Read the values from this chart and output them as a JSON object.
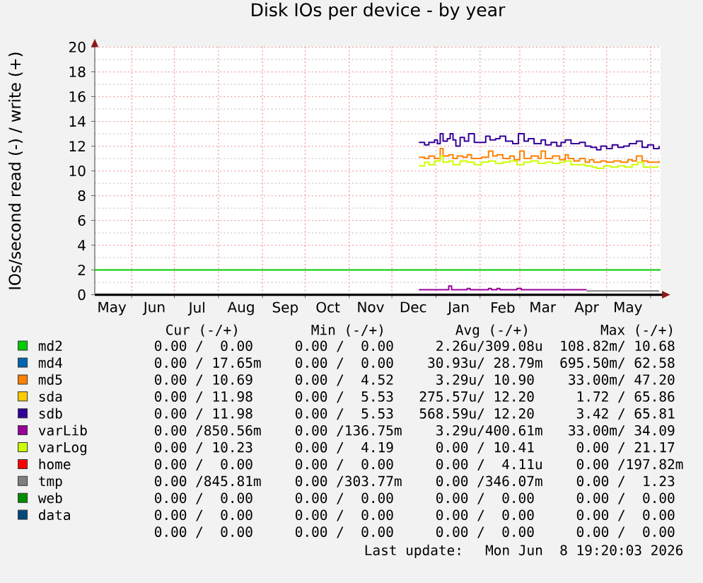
{
  "chart_data": {
    "type": "step",
    "title": "Disk IOs per device - by year",
    "ylabel": "IOs/second read (-) / write (+)",
    "xlim": [
      "2025-05-06",
      "2026-06-08"
    ],
    "xticks": [
      {
        "value": "2025-05-18",
        "label": "May"
      },
      {
        "value": "2025-06-01",
        "label": null
      },
      {
        "value": "2025-06-17",
        "label": "Jun"
      },
      {
        "value": "2025-07-01",
        "label": null
      },
      {
        "value": "2025-07-17",
        "label": "Jul"
      },
      {
        "value": "2025-08-01",
        "label": null
      },
      {
        "value": "2025-08-17",
        "label": "Aug"
      },
      {
        "value": "2025-09-01",
        "label": null
      },
      {
        "value": "2025-09-17",
        "label": "Sep"
      },
      {
        "value": "2025-10-01",
        "label": null
      },
      {
        "value": "2025-10-17",
        "label": "Oct"
      },
      {
        "value": "2025-11-01",
        "label": null
      },
      {
        "value": "2025-11-16",
        "label": "Nov"
      },
      {
        "value": "2025-12-01",
        "label": null
      },
      {
        "value": "2025-12-16",
        "label": "Dec"
      },
      {
        "value": "2026-01-01",
        "label": null
      },
      {
        "value": "2026-01-17",
        "label": "Jan"
      },
      {
        "value": "2026-02-01",
        "label": null
      },
      {
        "value": "2026-02-17",
        "label": "Feb"
      },
      {
        "value": "2026-03-01",
        "label": null
      },
      {
        "value": "2026-03-17",
        "label": "Mar"
      },
      {
        "value": "2026-04-01",
        "label": null
      },
      {
        "value": "2026-04-17",
        "label": "Apr"
      },
      {
        "value": "2026-05-01",
        "label": null
      },
      {
        "value": "2026-05-16",
        "label": "May"
      },
      {
        "value": "2026-06-01",
        "label": null
      }
    ],
    "ylim": [
      0,
      20
    ],
    "yticks": [
      0,
      {
        "value": 1,
        "label": null
      },
      2,
      {
        "value": 3,
        "label": null
      },
      4,
      {
        "value": 5,
        "label": null
      },
      6,
      {
        "value": 7,
        "label": null
      },
      8,
      {
        "value": 9,
        "label": null
      },
      10,
      {
        "value": 11,
        "label": null
      },
      12,
      {
        "value": 13,
        "label": null
      },
      14,
      {
        "value": 15,
        "label": null
      },
      16,
      {
        "value": 17,
        "label": null
      },
      18,
      {
        "value": 19,
        "label": null
      },
      20
    ],
    "grid": true,
    "legend": "bottom",
    "ref_lines": [
      {
        "axis": "y",
        "value": 2,
        "color": "#00cc00"
      }
    ],
    "series": [
      {
        "name": "md2",
        "color": "#00cc00"
      },
      {
        "name": "md4",
        "color": "#0066b3"
      },
      {
        "name": "md5",
        "color": "#ff8000",
        "x": [
          "2025-12-20",
          "2025-12-24",
          "2025-12-27",
          "2025-12-31",
          "2026-01-04",
          "2026-01-06",
          "2026-01-10",
          "2026-01-13",
          "2026-01-16",
          "2026-01-20",
          "2026-01-23",
          "2026-01-26",
          "2026-01-29",
          "2026-02-02",
          "2026-02-07",
          "2026-02-10",
          "2026-02-13",
          "2026-02-17",
          "2026-02-22",
          "2026-02-25",
          "2026-03-01",
          "2026-03-04",
          "2026-03-09",
          "2026-03-14",
          "2026-03-16",
          "2026-03-19",
          "2026-03-24",
          "2026-03-29",
          "2026-04-02",
          "2026-04-04",
          "2026-04-08",
          "2026-04-12",
          "2026-04-16",
          "2026-04-19",
          "2026-04-22",
          "2026-04-27",
          "2026-05-01",
          "2026-05-06",
          "2026-05-11",
          "2026-05-16",
          "2026-05-19",
          "2026-05-22",
          "2026-05-26",
          "2026-05-30",
          "2026-06-03",
          "2026-06-07"
        ],
        "values": [
          11.1,
          11.0,
          11.2,
          11.0,
          11.8,
          11.2,
          11.3,
          11.0,
          11.2,
          11.1,
          11.3,
          11.0,
          11.0,
          11.1,
          11.6,
          11.2,
          11.3,
          11.0,
          11.2,
          10.9,
          11.6,
          11.0,
          11.2,
          11.0,
          11.6,
          11.0,
          11.2,
          10.9,
          11.3,
          11.0,
          10.8,
          11.0,
          10.7,
          10.9,
          10.7,
          10.8,
          10.7,
          10.8,
          10.7,
          10.9,
          10.8,
          11.2,
          10.8,
          10.7,
          10.7,
          10.8
        ]
      },
      {
        "name": "sda",
        "color": "#ffcc00"
      },
      {
        "name": "sdb",
        "color": "#330099",
        "x": [
          "2025-12-20",
          "2025-12-24",
          "2025-12-27",
          "2025-12-31",
          "2026-01-02",
          "2026-01-04",
          "2026-01-06",
          "2026-01-09",
          "2026-01-11",
          "2026-01-13",
          "2026-01-15",
          "2026-01-18",
          "2026-01-21",
          "2026-01-24",
          "2026-01-28",
          "2026-02-01",
          "2026-02-05",
          "2026-02-08",
          "2026-02-12",
          "2026-02-15",
          "2026-02-19",
          "2026-02-24",
          "2026-02-28",
          "2026-03-04",
          "2026-03-07",
          "2026-03-11",
          "2026-03-16",
          "2026-03-19",
          "2026-03-23",
          "2026-03-27",
          "2026-03-30",
          "2026-04-02",
          "2026-04-06",
          "2026-04-12",
          "2026-04-16",
          "2026-04-20",
          "2026-04-24",
          "2026-04-27",
          "2026-05-01",
          "2026-05-05",
          "2026-05-09",
          "2026-05-13",
          "2026-05-17",
          "2026-05-22",
          "2026-05-26",
          "2026-05-30",
          "2026-06-03",
          "2026-06-07"
        ],
        "values": [
          12.3,
          12.1,
          12.3,
          12.5,
          12.2,
          13.0,
          12.4,
          12.6,
          13.0,
          12.5,
          12.0,
          12.7,
          12.4,
          13.0,
          12.3,
          12.3,
          12.8,
          12.5,
          12.6,
          12.8,
          12.4,
          12.2,
          13.0,
          12.4,
          12.6,
          12.2,
          12.5,
          12.1,
          12.3,
          12.0,
          12.3,
          12.5,
          12.2,
          12.3,
          12.0,
          11.9,
          11.7,
          12.0,
          11.8,
          12.1,
          11.9,
          12.0,
          12.2,
          12.4,
          11.9,
          12.1,
          11.8,
          12.0
        ]
      },
      {
        "name": "varLib",
        "color": "#990099",
        "x": [
          "2025-12-20",
          "2026-01-10",
          "2026-01-12",
          "2026-01-23",
          "2026-01-25",
          "2026-02-07",
          "2026-02-09",
          "2026-02-13",
          "2026-02-15",
          "2026-02-27",
          "2026-03-02",
          "2026-04-17"
        ],
        "values": [
          0.4,
          0.7,
          0.4,
          0.5,
          0.4,
          0.5,
          0.4,
          0.5,
          0.4,
          0.5,
          0.4,
          0.4
        ]
      },
      {
        "name": "varLog",
        "color": "#ccff00",
        "x": [
          "2025-12-20",
          "2025-12-24",
          "2025-12-27",
          "2025-12-31",
          "2026-01-04",
          "2026-01-06",
          "2026-01-10",
          "2026-01-13",
          "2026-01-18",
          "2026-01-23",
          "2026-01-28",
          "2026-02-02",
          "2026-02-07",
          "2026-02-12",
          "2026-02-17",
          "2026-02-22",
          "2026-02-27",
          "2026-03-04",
          "2026-03-09",
          "2026-03-14",
          "2026-03-19",
          "2026-03-24",
          "2026-03-29",
          "2026-04-02",
          "2026-04-06",
          "2026-04-11",
          "2026-04-16",
          "2026-04-21",
          "2026-04-24",
          "2026-04-29",
          "2026-05-04",
          "2026-05-09",
          "2026-05-14",
          "2026-05-19",
          "2026-05-23",
          "2026-05-27",
          "2026-06-01",
          "2026-06-06"
        ],
        "values": [
          10.4,
          10.7,
          10.5,
          10.8,
          11.2,
          10.7,
          10.8,
          10.5,
          10.8,
          10.7,
          10.5,
          10.7,
          10.8,
          10.6,
          10.7,
          10.8,
          10.5,
          10.7,
          10.8,
          10.6,
          10.7,
          10.6,
          10.7,
          10.8,
          10.5,
          10.5,
          10.4,
          10.3,
          10.2,
          10.4,
          10.3,
          10.4,
          10.3,
          10.5,
          10.7,
          10.3,
          10.3,
          10.4
        ]
      },
      {
        "name": "home",
        "color": "#ff0000"
      },
      {
        "name": "tmp",
        "color": "#808080",
        "x": [
          "2026-04-17",
          "2026-06-07"
        ],
        "values": [
          0.3,
          0.3
        ]
      },
      {
        "name": "web",
        "color": "#008f00"
      },
      {
        "name": "data",
        "color": "#00487d"
      }
    ],
    "annotations": [
      "Cur (-/+)",
      "Min (-/+)",
      "Avg (-/+)",
      "Max (-/+)",
      "0.00 /  0.00",
      "0.00 /  0.00",
      "2.26u/309.08u",
      "108.82m/ 10.68",
      "0.00 / 17.65m",
      "0.00 /  0.00",
      "30.93u/ 28.79m",
      "695.50m/ 62.58",
      "0.00 / 10.69",
      "0.00 /  4.52",
      "3.29u/ 10.90",
      "33.00m/ 47.20",
      "0.00 / 11.98",
      "0.00 /  5.53",
      "275.57u/ 12.20",
      "1.72 / 65.86",
      "0.00 / 11.98",
      "0.00 /  5.53",
      "568.59u/ 12.20",
      "3.42 / 65.81",
      "0.00 /850.56m",
      "0.00 /136.75m",
      "3.29u/400.61m",
      "33.00m/ 34.09",
      "0.00 / 10.23",
      "0.00 /  4.19",
      "0.00 / 10.41",
      "0.00 / 21.17",
      "0.00 /  0.00",
      "0.00 /  0.00",
      "0.00 /  4.11u",
      "0.00 /197.82m",
      "0.00 /845.81m",
      "0.00 /303.77m",
      "0.00 /346.07m",
      "0.00 /  1.23",
      "0.00 /  0.00",
      "0.00 /  0.00",
      "0.00 /  0.00",
      "0.00 /  0.00",
      "0.00 /  0.00",
      "0.00 /  0.00",
      "0.00 /  0.00",
      "0.00 /  0.00",
      "0.00 /  0.00",
      "0.00 /  0.00",
      "0.00 /  0.00",
      "0.00 /  0.00",
      "Last update:  Mon Jun  8 19:20:03 2026"
    ]
  }
}
